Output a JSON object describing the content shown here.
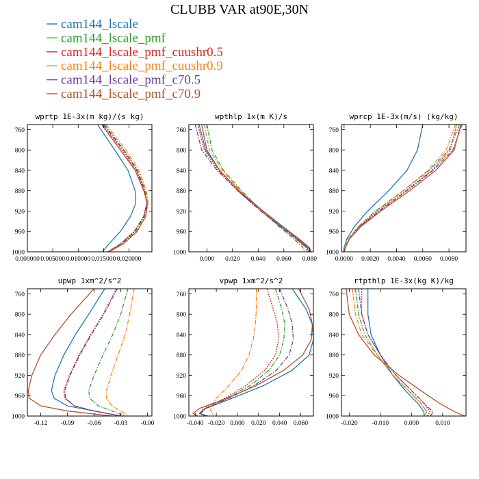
{
  "figure_title": "CLUBB VAR at90E,30N",
  "colors": {
    "cam144_lscale": "#1f77b4",
    "cam144_lscale_pmf": "#2ca02c",
    "cam144_lscale_pmf_cuushr0.5": "#d62728",
    "cam144_lscale_pmf_cuushr0.9": "#ff7f0e",
    "cam144_lscale_pmf_c70.5": "#6a3d9a",
    "cam144_lscale_pmf_c70.9": "#b5532a"
  },
  "legend": [
    {
      "name": "cam144_lscale",
      "dash": "solid"
    },
    {
      "name": "cam144_lscale_pmf",
      "dash": "dashdot"
    },
    {
      "name": "cam144_lscale_pmf_cuushr0.5",
      "dash": "dot"
    },
    {
      "name": "cam144_lscale_pmf_cuushr0.9",
      "dash": "dashdot"
    },
    {
      "name": "cam144_lscale_pmf_c70.5",
      "dash": "dashdot"
    },
    {
      "name": "cam144_lscale_pmf_c70.9",
      "dash": "solid"
    }
  ],
  "chart_data": [
    {
      "type": "line",
      "title": "wprtp  1E-3x(m kg)/(s kg)",
      "ylim": [
        1000,
        750
      ],
      "yticks": [
        760,
        800,
        840,
        880,
        920,
        960,
        1000
      ],
      "xlim": [
        0.0,
        0.0245
      ],
      "xticks": [
        0.0,
        0.005,
        0.01,
        0.015,
        0.02
      ],
      "xtick_labels": [
        "0.000000",
        "0.005000",
        "0.010000",
        "0.015000",
        "0.020000"
      ],
      "y": [
        750,
        800,
        840,
        880,
        905,
        930,
        960,
        985,
        1000
      ],
      "series": [
        {
          "name": "cam144_lscale",
          "values": [
            0.0138,
            0.0172,
            0.0198,
            0.0212,
            0.0213,
            0.0203,
            0.0183,
            0.016,
            0.0148
          ]
        },
        {
          "name": "cam144_lscale_pmf",
          "values": [
            0.0152,
            0.019,
            0.0217,
            0.0232,
            0.0236,
            0.023,
            0.0213,
            0.0185,
            0.016
          ]
        },
        {
          "name": "cam144_lscale_pmf_cuushr0.5",
          "values": [
            0.0148,
            0.0186,
            0.0214,
            0.023,
            0.0235,
            0.0229,
            0.021,
            0.0182,
            0.0158
          ]
        },
        {
          "name": "cam144_lscale_pmf_cuushr0.9",
          "values": [
            0.0155,
            0.0194,
            0.022,
            0.0234,
            0.0238,
            0.0232,
            0.0215,
            0.0187,
            0.0162
          ]
        },
        {
          "name": "cam144_lscale_pmf_c70.5",
          "values": [
            0.015,
            0.0189,
            0.0216,
            0.0231,
            0.0235,
            0.0229,
            0.0211,
            0.0183,
            0.0159
          ]
        },
        {
          "name": "cam144_lscale_pmf_c70.9",
          "values": [
            0.0146,
            0.0183,
            0.0212,
            0.0229,
            0.0236,
            0.0233,
            0.0216,
            0.0188,
            0.016
          ]
        }
      ]
    },
    {
      "type": "line",
      "title": "wpthlp  1x(m K)/s",
      "ylim": [
        1000,
        750
      ],
      "yticks": [
        760,
        800,
        840,
        880,
        920,
        960,
        1000
      ],
      "xlim": [
        -0.014,
        0.083
      ],
      "xticks": [
        0.0,
        0.02,
        0.04,
        0.06,
        0.08
      ],
      "xtick_labels": [
        "0.000",
        "0.020",
        "0.040",
        "0.060",
        "0.080"
      ],
      "y": [
        750,
        800,
        840,
        880,
        920,
        950,
        975,
        992,
        1000
      ],
      "series": [
        {
          "name": "cam144_lscale",
          "values": [
            -0.004,
            0.0,
            0.01,
            0.025,
            0.043,
            0.058,
            0.071,
            0.079,
            0.081
          ]
        },
        {
          "name": "cam144_lscale_pmf",
          "values": [
            0.0,
            0.004,
            0.013,
            0.027,
            0.043,
            0.056,
            0.068,
            0.075,
            0.076
          ]
        },
        {
          "name": "cam144_lscale_pmf_cuushr0.5",
          "values": [
            -0.007,
            -0.002,
            0.009,
            0.024,
            0.042,
            0.057,
            0.07,
            0.078,
            0.079
          ]
        },
        {
          "name": "cam144_lscale_pmf_cuushr0.9",
          "values": [
            -0.002,
            0.002,
            0.012,
            0.026,
            0.043,
            0.057,
            0.069,
            0.077,
            0.078
          ]
        },
        {
          "name": "cam144_lscale_pmf_c70.5",
          "values": [
            -0.009,
            -0.004,
            0.008,
            0.024,
            0.042,
            0.057,
            0.07,
            0.078,
            0.08
          ]
        },
        {
          "name": "cam144_lscale_pmf_c70.9",
          "values": [
            -0.006,
            -0.001,
            0.01,
            0.025,
            0.044,
            0.059,
            0.072,
            0.08,
            0.081
          ]
        }
      ]
    },
    {
      "type": "line",
      "title": "wprcp  1E-3x(m/s) (kg/kg)",
      "ylim": [
        1000,
        750
      ],
      "yticks": [
        760,
        800,
        840,
        880,
        920,
        960,
        1000
      ],
      "xlim": [
        -0.0002,
        0.0093
      ],
      "xticks": [
        0.0,
        0.002,
        0.004,
        0.006,
        0.008
      ],
      "xtick_labels": [
        "0.0000",
        "0.0020",
        "0.0040",
        "0.0060",
        "0.0080"
      ],
      "y": [
        750,
        800,
        840,
        880,
        920,
        950,
        975,
        992,
        1000
      ],
      "series": [
        {
          "name": "cam144_lscale",
          "values": [
            0.006,
            0.0056,
            0.0048,
            0.0034,
            0.0018,
            0.0008,
            0.0002,
            0.0,
            0.0
          ]
        },
        {
          "name": "cam144_lscale_pmf",
          "values": [
            0.0088,
            0.008,
            0.0065,
            0.0045,
            0.0024,
            0.0011,
            0.0003,
            0.0001,
            0.0
          ]
        },
        {
          "name": "cam144_lscale_pmf_cuushr0.5",
          "values": [
            0.0086,
            0.0081,
            0.0067,
            0.0047,
            0.0026,
            0.0012,
            0.0004,
            0.0001,
            0.0
          ]
        },
        {
          "name": "cam144_lscale_pmf_cuushr0.9",
          "values": [
            0.0085,
            0.0078,
            0.0064,
            0.0045,
            0.0025,
            0.0011,
            0.0003,
            0.0001,
            0.0
          ]
        },
        {
          "name": "cam144_lscale_pmf_c70.5",
          "values": [
            0.009,
            0.0083,
            0.0068,
            0.0048,
            0.0027,
            0.0012,
            0.0004,
            0.0001,
            0.0
          ]
        },
        {
          "name": "cam144_lscale_pmf_c70.9",
          "values": [
            0.0089,
            0.0084,
            0.007,
            0.005,
            0.0028,
            0.0013,
            0.0004,
            0.0001,
            0.0
          ]
        }
      ]
    },
    {
      "type": "line",
      "title": "upwp  1xm^2/s^2",
      "ylim": [
        1000,
        750
      ],
      "yticks": [
        760,
        800,
        840,
        880,
        920,
        960,
        1000
      ],
      "xlim": [
        -0.135,
        0.005
      ],
      "xticks": [
        -0.12,
        -0.09,
        -0.06,
        -0.03,
        0.0
      ],
      "xtick_labels": [
        "-0.12",
        "-0.09",
        "-0.06",
        "-0.03",
        "-0.00"
      ],
      "y": [
        750,
        800,
        840,
        880,
        920,
        950,
        965,
        980,
        990,
        1000
      ],
      "series": [
        {
          "name": "cam144_lscale",
          "values": [
            -0.048,
            -0.066,
            -0.081,
            -0.094,
            -0.104,
            -0.108,
            -0.105,
            -0.09,
            -0.06,
            -0.03
          ]
        },
        {
          "name": "cam144_lscale_pmf",
          "values": [
            -0.022,
            -0.03,
            -0.039,
            -0.05,
            -0.06,
            -0.066,
            -0.065,
            -0.055,
            -0.04,
            -0.025
          ]
        },
        {
          "name": "cam144_lscale_pmf_cuushr0.5",
          "values": [
            -0.035,
            -0.05,
            -0.064,
            -0.077,
            -0.088,
            -0.094,
            -0.093,
            -0.082,
            -0.06,
            -0.03
          ]
        },
        {
          "name": "cam144_lscale_pmf_cuushr0.9",
          "values": [
            -0.015,
            -0.02,
            -0.025,
            -0.033,
            -0.041,
            -0.046,
            -0.046,
            -0.04,
            -0.03,
            -0.022
          ]
        },
        {
          "name": "cam144_lscale_pmf_c70.5",
          "values": [
            -0.034,
            -0.049,
            -0.063,
            -0.076,
            -0.087,
            -0.093,
            -0.092,
            -0.082,
            -0.06,
            -0.03
          ]
        },
        {
          "name": "cam144_lscale_pmf_c70.9",
          "values": [
            -0.06,
            -0.086,
            -0.104,
            -0.12,
            -0.13,
            -0.134,
            -0.133,
            -0.12,
            -0.09,
            -0.04
          ]
        }
      ]
    },
    {
      "type": "line",
      "title": "vpwp  1xm^2/s^2",
      "ylim": [
        1000,
        750
      ],
      "yticks": [
        760,
        800,
        840,
        880,
        920,
        960,
        1000
      ],
      "xlim": [
        -0.046,
        0.072
      ],
      "xticks": [
        -0.04,
        -0.02,
        0.0,
        0.02,
        0.04,
        0.06
      ],
      "xtick_labels": [
        "-0.040",
        "-0.020",
        "0.000",
        "0.020",
        "0.040",
        "0.060"
      ],
      "y": [
        750,
        790,
        820,
        850,
        880,
        910,
        940,
        965,
        985,
        995,
        1000
      ],
      "series": [
        {
          "name": "cam144_lscale",
          "values": [
            0.052,
            0.065,
            0.071,
            0.072,
            0.068,
            0.052,
            0.025,
            -0.005,
            -0.03,
            -0.036,
            -0.028
          ]
        },
        {
          "name": "cam144_lscale_pmf",
          "values": [
            0.036,
            0.042,
            0.045,
            0.044,
            0.04,
            0.03,
            0.012,
            -0.01,
            -0.03,
            -0.035,
            -0.03
          ]
        },
        {
          "name": "cam144_lscale_pmf_cuushr0.5",
          "values": [
            0.028,
            0.034,
            0.038,
            0.039,
            0.036,
            0.026,
            0.008,
            -0.012,
            -0.032,
            -0.036,
            -0.03
          ]
        },
        {
          "name": "cam144_lscale_pmf_cuushr0.9",
          "values": [
            0.018,
            0.018,
            0.017,
            0.015,
            0.011,
            0.004,
            -0.008,
            -0.02,
            -0.026,
            -0.024,
            -0.022
          ]
        },
        {
          "name": "cam144_lscale_pmf_c70.5",
          "values": [
            0.04,
            0.048,
            0.052,
            0.053,
            0.049,
            0.037,
            0.016,
            -0.008,
            -0.03,
            -0.035,
            -0.03
          ]
        },
        {
          "name": "cam144_lscale_pmf_c70.9",
          "values": [
            0.058,
            0.068,
            0.071,
            0.07,
            0.062,
            0.044,
            0.018,
            -0.01,
            -0.036,
            -0.042,
            -0.038
          ]
        }
      ]
    },
    {
      "type": "line",
      "title": "rtpthlp  1E-3x(kg K)/kg",
      "ylim": [
        1000,
        750
      ],
      "yticks": [
        760,
        800,
        840,
        880,
        920,
        960,
        1000
      ],
      "xlim": [
        -0.0225,
        0.0175
      ],
      "xticks": [
        -0.02,
        -0.01,
        0.0,
        0.01
      ],
      "xtick_labels": [
        "-0.020",
        "-0.010",
        "0.000",
        "0.010"
      ],
      "y": [
        750,
        800,
        840,
        880,
        920,
        950,
        975,
        992,
        1000
      ],
      "series": [
        {
          "name": "cam144_lscale",
          "values": [
            -0.014,
            -0.014,
            -0.013,
            -0.01,
            -0.006,
            -0.002,
            0.002,
            0.004,
            0.004
          ]
        },
        {
          "name": "cam144_lscale_pmf",
          "values": [
            -0.018,
            -0.017,
            -0.015,
            -0.011,
            -0.006,
            -0.001,
            0.003,
            0.005,
            0.004
          ]
        },
        {
          "name": "cam144_lscale_pmf_cuushr0.5",
          "values": [
            -0.016,
            -0.016,
            -0.014,
            -0.01,
            -0.005,
            0.0,
            0.004,
            0.006,
            0.005
          ]
        },
        {
          "name": "cam144_lscale_pmf_cuushr0.9",
          "values": [
            -0.019,
            -0.018,
            -0.016,
            -0.011,
            -0.006,
            -0.001,
            0.003,
            0.005,
            0.004
          ]
        },
        {
          "name": "cam144_lscale_pmf_c70.5",
          "values": [
            -0.017,
            -0.016,
            -0.014,
            -0.01,
            -0.005,
            0.0,
            0.004,
            0.007,
            0.006
          ]
        },
        {
          "name": "cam144_lscale_pmf_c70.9",
          "values": [
            -0.021,
            -0.02,
            -0.017,
            -0.012,
            -0.004,
            0.003,
            0.009,
            0.014,
            0.017
          ]
        }
      ]
    }
  ]
}
